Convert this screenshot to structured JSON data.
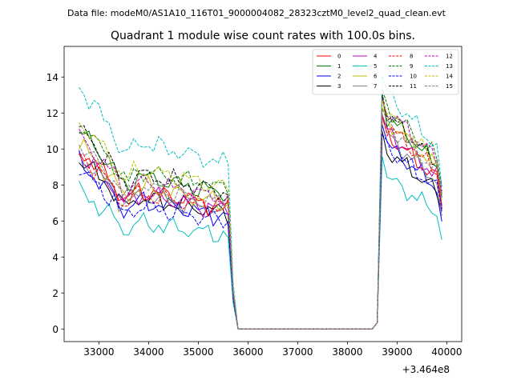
{
  "figure": {
    "suptitle": "Data file: modeM0/AS1A10_116T01_9000004082_28323cztM0_level2_quad_clean.evt"
  },
  "chart_data": {
    "type": "line",
    "title": "Quadrant 1 module wise count rates with 100.0s bins.",
    "xlabel": "",
    "ylabel": "",
    "x_offset_label": "+3.464e8",
    "xlim": [
      32300,
      40300
    ],
    "ylim": [
      -0.7,
      15.7
    ],
    "x_ticks": [
      33000,
      34000,
      35000,
      36000,
      37000,
      38000,
      39000,
      40000
    ],
    "x_tick_labels": [
      "33000",
      "34000",
      "35000",
      "36000",
      "37000",
      "38000",
      "39000",
      "40000"
    ],
    "y_ticks": [
      0,
      2,
      4,
      6,
      8,
      10,
      12,
      14
    ],
    "y_tick_labels": [
      "0",
      "2",
      "4",
      "6",
      "8",
      "10",
      "12",
      "14"
    ],
    "grid": false,
    "legend": "top-right",
    "bin_start": 32600,
    "bin_width": 100,
    "series": [
      {
        "name": "0",
        "color": "#ff0000",
        "dash": "solid",
        "base": 7.7,
        "high": 10.8,
        "phase": 0.0
      },
      {
        "name": "1",
        "color": "#008000",
        "dash": "solid",
        "base": 8.5,
        "high": 11.8,
        "phase": 1.3
      },
      {
        "name": "2",
        "color": "#0000ff",
        "dash": "solid",
        "base": 7.1,
        "high": 10.2,
        "phase": 2.1
      },
      {
        "name": "3",
        "color": "#000000",
        "dash": "solid",
        "base": 7.3,
        "high": 9.9,
        "phase": 0.7
      },
      {
        "name": "4",
        "color": "#bf00bf",
        "dash": "solid",
        "base": 7.5,
        "high": 11.0,
        "phase": 3.2
      },
      {
        "name": "5",
        "color": "#00bfbf",
        "dash": "solid",
        "base": 5.9,
        "high": 8.4,
        "phase": 1.9
      },
      {
        "name": "6",
        "color": "#bfbf00",
        "dash": "solid",
        "base": 7.9,
        "high": 11.6,
        "phase": 4.0
      },
      {
        "name": "7",
        "color": "#808080",
        "dash": "solid",
        "base": 7.4,
        "high": 10.7,
        "phase": 2.6
      },
      {
        "name": "8",
        "color": "#ff0000",
        "dash": "dashed",
        "base": 7.5,
        "high": 11.3,
        "phase": 5.1
      },
      {
        "name": "9",
        "color": "#008000",
        "dash": "dashed",
        "base": 8.8,
        "high": 12.3,
        "phase": 0.4
      },
      {
        "name": "10",
        "color": "#0000ff",
        "dash": "dashed",
        "base": 6.8,
        "high": 10.1,
        "phase": 3.7
      },
      {
        "name": "11",
        "color": "#000000",
        "dash": "dashed",
        "base": 8.6,
        "high": 11.9,
        "phase": 1.6
      },
      {
        "name": "12",
        "color": "#bf00bf",
        "dash": "dashed",
        "base": 8.2,
        "high": 12.2,
        "phase": 4.6
      },
      {
        "name": "13",
        "color": "#00bfbf",
        "dash": "dashed",
        "base": 10.4,
        "high": 13.1,
        "phase": 2.9
      },
      {
        "name": "14",
        "color": "#bfbf00",
        "dash": "dashed",
        "base": 8.9,
        "high": 12.0,
        "phase": 5.6
      },
      {
        "name": "15",
        "color": "#808080",
        "dash": "dashed",
        "base": 7.9,
        "high": 11.4,
        "phase": 3.4
      }
    ]
  }
}
